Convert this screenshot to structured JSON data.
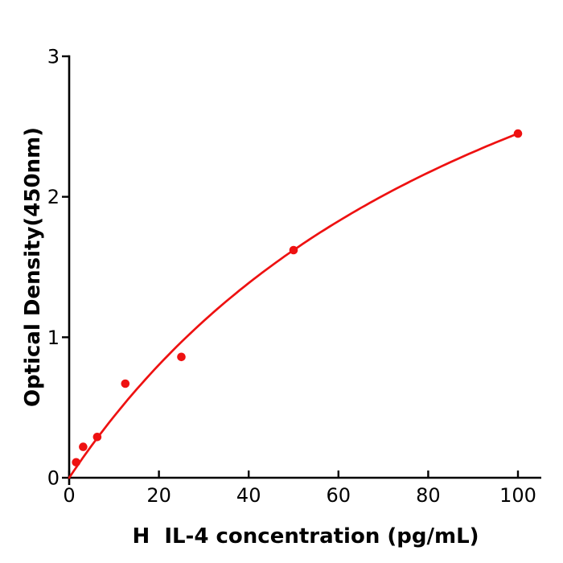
{
  "chart_data": {
    "type": "scatter",
    "xlabel": "H  IL-4 concentration (pg/mL)",
    "ylabel": "Optical Density(450nm)",
    "xlim": [
      0,
      100
    ],
    "ylim": [
      0,
      3
    ],
    "x_ticks": [
      0,
      20,
      40,
      60,
      80,
      100
    ],
    "y_ticks": [
      0,
      1,
      2,
      3
    ],
    "grid": false,
    "legend": null,
    "points": [
      {
        "x": 1.56,
        "y": 0.11
      },
      {
        "x": 3.125,
        "y": 0.22
      },
      {
        "x": 6.25,
        "y": 0.29
      },
      {
        "x": 12.5,
        "y": 0.67
      },
      {
        "x": 25,
        "y": 0.86
      },
      {
        "x": 50,
        "y": 1.62
      },
      {
        "x": 100,
        "y": 2.45
      }
    ],
    "fit_curve": {
      "model": "michaelis_menten",
      "vmax": 5.02,
      "km": 104.9,
      "x_range": [
        0,
        100
      ]
    },
    "colors": {
      "series": "#ee1111",
      "axis": "#000000",
      "tick_labels": "#000000"
    }
  }
}
